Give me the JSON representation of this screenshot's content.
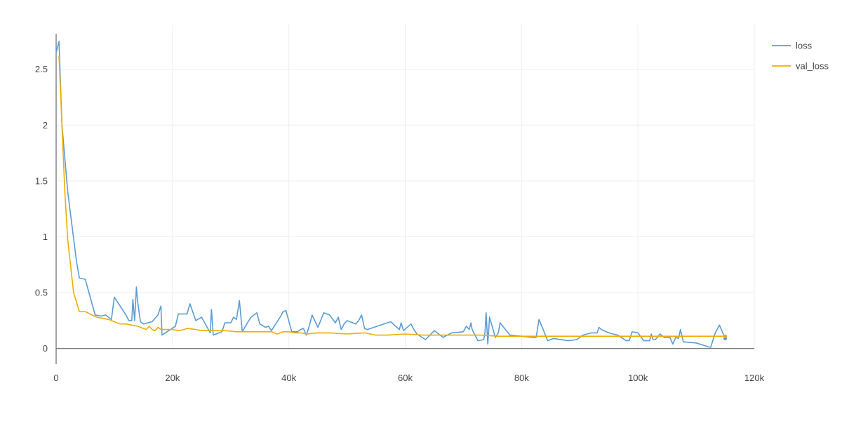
{
  "chart_data": {
    "type": "line",
    "title": "",
    "xlabel": "",
    "ylabel": "",
    "xlim": [
      0,
      120000
    ],
    "ylim": [
      -0.14,
      2.9
    ],
    "x_ticks": [
      0,
      20000,
      40000,
      60000,
      80000,
      100000,
      120000
    ],
    "x_tick_labels": [
      "0",
      "20k",
      "40k",
      "60k",
      "80k",
      "100k",
      "120k"
    ],
    "y_ticks": [
      0,
      0.5,
      1,
      1.5,
      2,
      2.5
    ],
    "y_tick_labels": [
      "0",
      "0.5",
      "1",
      "1.5",
      "2",
      "2.5"
    ],
    "grid": true,
    "legend": {
      "position": "top-right outside"
    },
    "series": [
      {
        "name": "loss",
        "color": "#5b9bd5",
        "x": [
          0,
          500,
          1000,
          2000,
          3500,
          4000,
          5000,
          6700,
          7800,
          8500,
          9500,
          10000,
          12000,
          12500,
          13000,
          13200,
          13500,
          13800,
          14000,
          14500,
          15000,
          16500,
          17500,
          18000,
          18200,
          20500,
          21000,
          22500,
          23000,
          24000,
          25000,
          26500,
          26700,
          27000,
          28500,
          29000,
          30000,
          30500,
          31000,
          31500,
          32000,
          33000,
          33500,
          34500,
          35000,
          36000,
          36500,
          37000,
          38500,
          39000,
          39500,
          40500,
          41500,
          42000,
          42500,
          43000,
          43500,
          44000,
          45000,
          46000,
          47000,
          48000,
          48500,
          49000,
          49500,
          50000,
          51500,
          52000,
          52500,
          53000,
          53500,
          57500,
          59000,
          59300,
          59700,
          61000,
          61500,
          62000,
          63500,
          65000,
          66500,
          68000,
          70000,
          70500,
          71000,
          71300,
          71500,
          72500,
          73500,
          73700,
          73900,
          74200,
          74500,
          75500,
          76000,
          76300,
          78000,
          80000,
          82000,
          82500,
          83000,
          84500,
          85500,
          88000,
          89500,
          90500,
          92000,
          93000,
          93300,
          93700,
          95000,
          96500,
          98000,
          98500,
          99000,
          100000,
          101000,
          102000,
          102300,
          102600,
          103000,
          103800,
          104500,
          105500,
          106000,
          106500,
          107000,
          107300,
          107800,
          110000,
          112500,
          113300,
          114000,
          115000
        ],
        "y": [
          2.65,
          2.75,
          2.0,
          1.4,
          0.78,
          0.63,
          0.62,
          0.3,
          0.29,
          0.3,
          0.26,
          0.46,
          0.3,
          0.25,
          0.25,
          0.44,
          0.25,
          0.55,
          0.42,
          0.24,
          0.22,
          0.24,
          0.3,
          0.38,
          0.12,
          0.2,
          0.31,
          0.31,
          0.4,
          0.25,
          0.28,
          0.14,
          0.35,
          0.12,
          0.15,
          0.23,
          0.23,
          0.28,
          0.26,
          0.43,
          0.15,
          0.24,
          0.28,
          0.32,
          0.22,
          0.19,
          0.2,
          0.16,
          0.28,
          0.33,
          0.34,
          0.15,
          0.15,
          0.17,
          0.18,
          0.12,
          0.2,
          0.3,
          0.19,
          0.32,
          0.3,
          0.23,
          0.28,
          0.17,
          0.22,
          0.25,
          0.22,
          0.25,
          0.3,
          0.18,
          0.17,
          0.24,
          0.17,
          0.23,
          0.16,
          0.22,
          0.17,
          0.13,
          0.08,
          0.16,
          0.1,
          0.14,
          0.15,
          0.2,
          0.17,
          0.23,
          0.17,
          0.07,
          0.08,
          0.14,
          0.32,
          0.04,
          0.28,
          0.1,
          0.14,
          0.23,
          0.12,
          0.11,
          0.1,
          0.1,
          0.26,
          0.07,
          0.09,
          0.07,
          0.08,
          0.12,
          0.14,
          0.14,
          0.19,
          0.17,
          0.14,
          0.12,
          0.07,
          0.07,
          0.15,
          0.14,
          0.07,
          0.07,
          0.13,
          0.08,
          0.08,
          0.13,
          0.1,
          0.1,
          0.04,
          0.1,
          0.09,
          0.17,
          0.06,
          0.05,
          0.01,
          0.14,
          0.21,
          0.09
        ]
      },
      {
        "name": "val_loss",
        "color": "#f0ad00",
        "x": [
          500,
          1000,
          1500,
          2000,
          3000,
          4000,
          5000,
          7000,
          8000,
          9000,
          10000,
          11000,
          12000,
          13000,
          14000,
          15000,
          15500,
          16000,
          16500,
          17000,
          17500,
          18000,
          20000,
          21000,
          22000,
          22500,
          24000,
          25000,
          27000,
          29000,
          31000,
          33000,
          35000,
          37000,
          38000,
          39000,
          40000,
          41000,
          42000,
          43000,
          45000,
          47000,
          50000,
          53000,
          54000,
          55000,
          57000,
          60000,
          63000,
          65000,
          68000,
          70000,
          73000,
          76000,
          80000,
          85000,
          90000,
          95000,
          100000,
          105000,
          110000,
          115000
        ],
        "y": [
          2.62,
          2.0,
          1.4,
          0.97,
          0.5,
          0.33,
          0.33,
          0.28,
          0.27,
          0.26,
          0.24,
          0.22,
          0.22,
          0.21,
          0.2,
          0.18,
          0.17,
          0.2,
          0.17,
          0.16,
          0.19,
          0.17,
          0.17,
          0.16,
          0.17,
          0.18,
          0.17,
          0.16,
          0.16,
          0.16,
          0.15,
          0.15,
          0.15,
          0.15,
          0.13,
          0.15,
          0.15,
          0.14,
          0.14,
          0.13,
          0.14,
          0.14,
          0.13,
          0.14,
          0.13,
          0.12,
          0.12,
          0.13,
          0.12,
          0.12,
          0.12,
          0.12,
          0.12,
          0.11,
          0.11,
          0.11,
          0.11,
          0.11,
          0.11,
          0.11,
          0.11,
          0.11
        ]
      }
    ]
  }
}
